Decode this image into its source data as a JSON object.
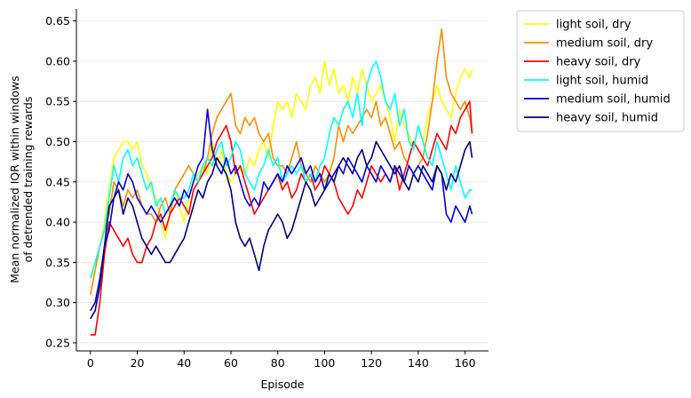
{
  "chart_data": {
    "type": "line",
    "xlabel": "Episode",
    "ylabel_lines": [
      "Mean normalized IQR within windows",
      "of detrended training rewards"
    ],
    "xlim": [
      -6,
      170
    ],
    "ylim": [
      0.24,
      0.665
    ],
    "xticks": [
      0,
      20,
      40,
      60,
      80,
      100,
      120,
      140,
      160
    ],
    "yticks": [
      0.25,
      0.3,
      0.35,
      0.4,
      0.45,
      0.5,
      0.55,
      0.6,
      0.65
    ],
    "ytick_labels": [
      "0.25",
      "0.30",
      "0.35",
      "0.40",
      "0.45",
      "0.50",
      "0.55",
      "0.60",
      "0.65"
    ],
    "grid": "horizontal",
    "legend_position": "outside-top-right",
    "series": [
      {
        "name": "light soil, dry",
        "color": "#ffff00",
        "x": [
          0,
          2,
          4,
          6,
          8,
          10,
          12,
          14,
          16,
          18,
          20,
          22,
          24,
          26,
          28,
          30,
          32,
          34,
          36,
          38,
          40,
          42,
          44,
          46,
          48,
          50,
          52,
          54,
          56,
          58,
          60,
          62,
          64,
          66,
          68,
          70,
          72,
          74,
          76,
          78,
          80,
          82,
          84,
          86,
          88,
          90,
          92,
          94,
          96,
          98,
          100,
          102,
          104,
          106,
          108,
          110,
          112,
          114,
          116,
          118,
          120,
          122,
          124,
          126,
          128,
          130,
          132,
          134,
          136,
          138,
          140,
          142,
          144,
          146,
          148,
          150,
          152,
          154,
          156,
          158,
          160,
          162,
          163
        ],
        "y": [
          0.33,
          0.34,
          0.37,
          0.4,
          0.44,
          0.48,
          0.49,
          0.5,
          0.5,
          0.49,
          0.5,
          0.47,
          0.46,
          0.44,
          0.43,
          0.4,
          0.38,
          0.41,
          0.44,
          0.42,
          0.4,
          0.43,
          0.45,
          0.46,
          0.47,
          0.46,
          0.5,
          0.47,
          0.49,
          0.46,
          0.45,
          0.46,
          0.47,
          0.46,
          0.48,
          0.47,
          0.49,
          0.5,
          0.48,
          0.52,
          0.55,
          0.54,
          0.55,
          0.53,
          0.56,
          0.55,
          0.54,
          0.57,
          0.58,
          0.56,
          0.6,
          0.57,
          0.59,
          0.56,
          0.57,
          0.55,
          0.58,
          0.56,
          0.59,
          0.57,
          0.55,
          0.56,
          0.57,
          0.55,
          0.53,
          0.5,
          0.54,
          0.52,
          0.51,
          0.49,
          0.52,
          0.5,
          0.53,
          0.55,
          0.57,
          0.55,
          0.54,
          0.53,
          0.56,
          0.58,
          0.59,
          0.58,
          0.59
        ]
      },
      {
        "name": "medium soil, dry",
        "color": "#ff8c00",
        "x": [
          0,
          2,
          4,
          6,
          8,
          10,
          12,
          14,
          16,
          18,
          20,
          22,
          24,
          26,
          28,
          30,
          32,
          34,
          36,
          38,
          40,
          42,
          44,
          46,
          48,
          50,
          52,
          54,
          56,
          58,
          60,
          62,
          64,
          66,
          68,
          70,
          72,
          74,
          76,
          78,
          80,
          82,
          84,
          86,
          88,
          90,
          92,
          94,
          96,
          98,
          100,
          102,
          104,
          106,
          108,
          110,
          112,
          114,
          116,
          118,
          120,
          122,
          124,
          126,
          128,
          130,
          132,
          134,
          136,
          138,
          140,
          142,
          144,
          146,
          148,
          150,
          152,
          154,
          156,
          158,
          160,
          162,
          163
        ],
        "y": [
          0.31,
          0.34,
          0.37,
          0.39,
          0.41,
          0.45,
          0.44,
          0.42,
          0.44,
          0.43,
          0.44,
          0.42,
          0.41,
          0.41,
          0.4,
          0.42,
          0.43,
          0.41,
          0.44,
          0.45,
          0.46,
          0.47,
          0.46,
          0.45,
          0.46,
          0.48,
          0.51,
          0.53,
          0.54,
          0.55,
          0.56,
          0.52,
          0.51,
          0.53,
          0.52,
          0.53,
          0.51,
          0.5,
          0.51,
          0.48,
          0.47,
          0.47,
          0.46,
          0.48,
          0.5,
          0.47,
          0.46,
          0.45,
          0.47,
          0.46,
          0.45,
          0.46,
          0.48,
          0.52,
          0.5,
          0.52,
          0.51,
          0.52,
          0.53,
          0.54,
          0.53,
          0.55,
          0.52,
          0.53,
          0.51,
          0.49,
          0.5,
          0.48,
          0.47,
          0.46,
          0.47,
          0.48,
          0.51,
          0.55,
          0.6,
          0.64,
          0.58,
          0.56,
          0.55,
          0.54,
          0.55,
          0.53,
          0.51
        ]
      },
      {
        "name": "heavy soil, dry",
        "color": "#ff0000",
        "x": [
          0,
          2,
          4,
          6,
          8,
          10,
          12,
          14,
          16,
          18,
          20,
          22,
          24,
          26,
          28,
          30,
          32,
          34,
          36,
          38,
          40,
          42,
          44,
          46,
          48,
          50,
          52,
          54,
          56,
          58,
          60,
          62,
          64,
          66,
          68,
          70,
          72,
          74,
          76,
          78,
          80,
          82,
          84,
          86,
          88,
          90,
          92,
          94,
          96,
          98,
          100,
          102,
          104,
          106,
          108,
          110,
          112,
          114,
          116,
          118,
          120,
          122,
          124,
          126,
          128,
          130,
          132,
          134,
          136,
          138,
          140,
          142,
          144,
          146,
          148,
          150,
          152,
          154,
          156,
          158,
          160,
          162,
          163
        ],
        "y": [
          0.26,
          0.26,
          0.3,
          0.36,
          0.4,
          0.39,
          0.38,
          0.37,
          0.38,
          0.36,
          0.35,
          0.35,
          0.37,
          0.38,
          0.4,
          0.41,
          0.39,
          0.41,
          0.42,
          0.43,
          0.42,
          0.41,
          0.44,
          0.45,
          0.46,
          0.47,
          0.48,
          0.5,
          0.51,
          0.52,
          0.5,
          0.46,
          0.47,
          0.45,
          0.43,
          0.41,
          0.42,
          0.43,
          0.44,
          0.45,
          0.46,
          0.44,
          0.45,
          0.43,
          0.44,
          0.46,
          0.45,
          0.46,
          0.44,
          0.45,
          0.47,
          0.46,
          0.45,
          0.43,
          0.42,
          0.41,
          0.42,
          0.44,
          0.43,
          0.45,
          0.47,
          0.46,
          0.45,
          0.46,
          0.45,
          0.47,
          0.44,
          0.46,
          0.48,
          0.5,
          0.49,
          0.48,
          0.47,
          0.49,
          0.51,
          0.5,
          0.49,
          0.52,
          0.51,
          0.53,
          0.54,
          0.55,
          0.51
        ]
      },
      {
        "name": "light soil, humid",
        "color": "#00ffff",
        "x": [
          0,
          2,
          4,
          6,
          8,
          10,
          12,
          14,
          16,
          18,
          20,
          22,
          24,
          26,
          28,
          30,
          32,
          34,
          36,
          38,
          40,
          42,
          44,
          46,
          48,
          50,
          52,
          54,
          56,
          58,
          60,
          62,
          64,
          66,
          68,
          70,
          72,
          74,
          76,
          78,
          80,
          82,
          84,
          86,
          88,
          90,
          92,
          94,
          96,
          98,
          100,
          102,
          104,
          106,
          108,
          110,
          112,
          114,
          116,
          118,
          120,
          122,
          124,
          126,
          128,
          130,
          132,
          134,
          136,
          138,
          140,
          142,
          144,
          146,
          148,
          150,
          152,
          154,
          156,
          158,
          160,
          162,
          163
        ],
        "y": [
          0.33,
          0.35,
          0.37,
          0.39,
          0.43,
          0.47,
          0.45,
          0.48,
          0.49,
          0.47,
          0.48,
          0.46,
          0.44,
          0.45,
          0.42,
          0.43,
          0.41,
          0.42,
          0.44,
          0.43,
          0.43,
          0.44,
          0.46,
          0.45,
          0.47,
          0.48,
          0.47,
          0.49,
          0.5,
          0.47,
          0.48,
          0.5,
          0.49,
          0.46,
          0.45,
          0.44,
          0.46,
          0.47,
          0.49,
          0.47,
          0.48,
          0.45,
          0.46,
          0.47,
          0.46,
          0.47,
          0.45,
          0.46,
          0.45,
          0.47,
          0.48,
          0.51,
          0.53,
          0.52,
          0.54,
          0.55,
          0.53,
          0.56,
          0.52,
          0.57,
          0.59,
          0.6,
          0.58,
          0.55,
          0.54,
          0.56,
          0.52,
          0.54,
          0.5,
          0.49,
          0.52,
          0.5,
          0.48,
          0.47,
          0.5,
          0.48,
          0.46,
          0.44,
          0.47,
          0.45,
          0.43,
          0.44,
          0.44
        ]
      },
      {
        "name": "medium soil, humid",
        "color": "#0000dd",
        "x": [
          0,
          2,
          4,
          6,
          8,
          10,
          12,
          14,
          16,
          18,
          20,
          22,
          24,
          26,
          28,
          30,
          32,
          34,
          36,
          38,
          40,
          42,
          44,
          46,
          48,
          50,
          52,
          54,
          56,
          58,
          60,
          62,
          64,
          66,
          68,
          70,
          72,
          74,
          76,
          78,
          80,
          82,
          84,
          86,
          88,
          90,
          92,
          94,
          96,
          98,
          100,
          102,
          104,
          106,
          108,
          110,
          112,
          114,
          116,
          118,
          120,
          122,
          124,
          126,
          128,
          130,
          132,
          134,
          136,
          138,
          140,
          142,
          144,
          146,
          148,
          150,
          152,
          154,
          156,
          158,
          160,
          162,
          163
        ],
        "y": [
          0.29,
          0.3,
          0.33,
          0.37,
          0.39,
          0.43,
          0.45,
          0.44,
          0.46,
          0.45,
          0.43,
          0.42,
          0.41,
          0.42,
          0.41,
          0.4,
          0.41,
          0.42,
          0.43,
          0.42,
          0.44,
          0.43,
          0.45,
          0.47,
          0.48,
          0.54,
          0.49,
          0.47,
          0.46,
          0.48,
          0.46,
          0.47,
          0.45,
          0.43,
          0.42,
          0.43,
          0.42,
          0.45,
          0.44,
          0.45,
          0.46,
          0.45,
          0.47,
          0.46,
          0.47,
          0.48,
          0.46,
          0.47,
          0.45,
          0.46,
          0.44,
          0.45,
          0.46,
          0.47,
          0.46,
          0.48,
          0.47,
          0.46,
          0.45,
          0.47,
          0.46,
          0.45,
          0.47,
          0.46,
          0.45,
          0.47,
          0.46,
          0.45,
          0.47,
          0.46,
          0.47,
          0.46,
          0.45,
          0.44,
          0.47,
          0.46,
          0.41,
          0.4,
          0.42,
          0.41,
          0.4,
          0.42,
          0.41
        ]
      },
      {
        "name": "heavy soil, humid",
        "color": "#000080",
        "x": [
          0,
          2,
          4,
          6,
          8,
          10,
          12,
          14,
          16,
          18,
          20,
          22,
          24,
          26,
          28,
          30,
          32,
          34,
          36,
          38,
          40,
          42,
          44,
          46,
          48,
          50,
          52,
          54,
          56,
          58,
          60,
          62,
          64,
          66,
          68,
          70,
          72,
          74,
          76,
          78,
          80,
          82,
          84,
          86,
          88,
          90,
          92,
          94,
          96,
          98,
          100,
          102,
          104,
          106,
          108,
          110,
          112,
          114,
          116,
          118,
          120,
          122,
          124,
          126,
          128,
          130,
          132,
          134,
          136,
          138,
          140,
          142,
          144,
          146,
          148,
          150,
          152,
          154,
          156,
          158,
          160,
          162,
          163
        ],
        "y": [
          0.28,
          0.29,
          0.32,
          0.37,
          0.42,
          0.43,
          0.44,
          0.41,
          0.43,
          0.42,
          0.4,
          0.38,
          0.37,
          0.36,
          0.37,
          0.36,
          0.35,
          0.35,
          0.36,
          0.37,
          0.38,
          0.4,
          0.42,
          0.44,
          0.43,
          0.45,
          0.46,
          0.48,
          0.47,
          0.46,
          0.44,
          0.4,
          0.38,
          0.37,
          0.38,
          0.36,
          0.34,
          0.37,
          0.39,
          0.4,
          0.41,
          0.4,
          0.38,
          0.39,
          0.41,
          0.43,
          0.45,
          0.44,
          0.42,
          0.43,
          0.44,
          0.46,
          0.45,
          0.47,
          0.48,
          0.47,
          0.46,
          0.48,
          0.49,
          0.47,
          0.48,
          0.5,
          0.49,
          0.48,
          0.47,
          0.46,
          0.47,
          0.45,
          0.44,
          0.46,
          0.45,
          0.47,
          0.46,
          0.45,
          0.47,
          0.46,
          0.44,
          0.46,
          0.45,
          0.47,
          0.49,
          0.5,
          0.48
        ]
      }
    ]
  }
}
